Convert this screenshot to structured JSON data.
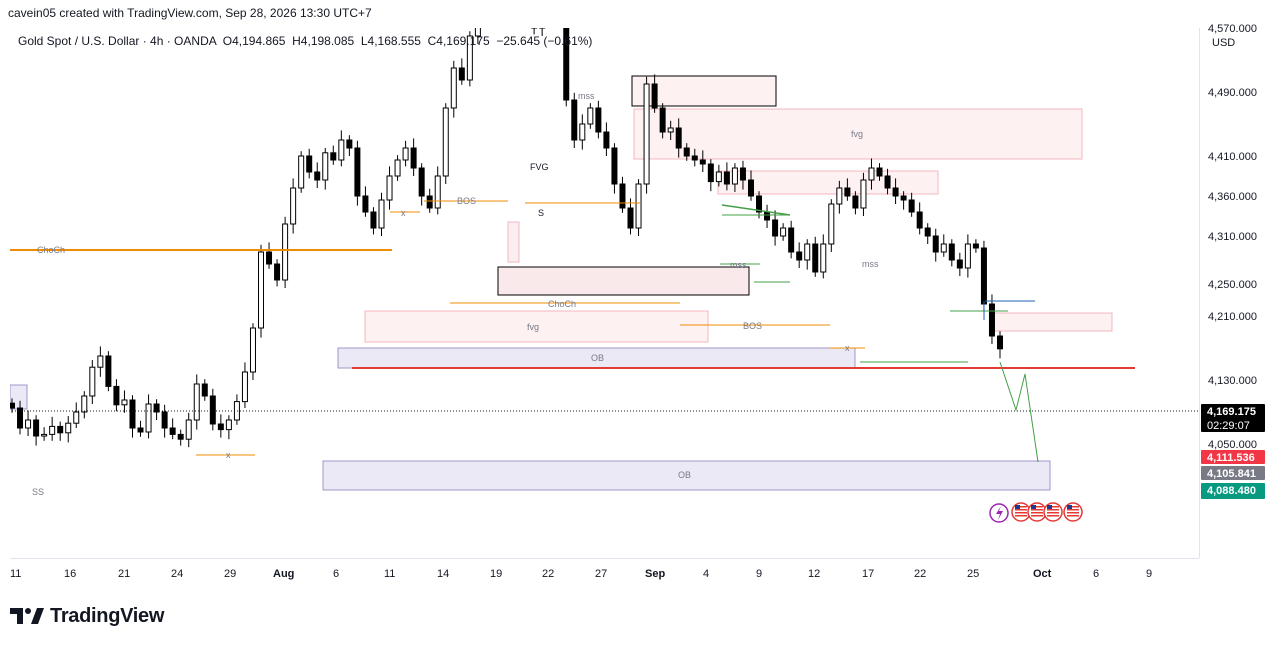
{
  "header": {
    "attribution": "cavein05 created with TradingView.com, Sep 28, 2026 13:30 UTC+7"
  },
  "symbol": {
    "name": "Gold Spot / U.S. Dollar · 4h · OANDA",
    "open": "O4,194.865",
    "high": "H4,198.085",
    "low": "L4,168.555",
    "close": "C4,169.175",
    "change": "−25.645 (−0.61%)"
  },
  "currency": "USD",
  "price_labels": {
    "current": "4,169.175",
    "countdown": "02:29:07",
    "red": "4,111.536",
    "gray": "4,105.841",
    "green": "4,088.480"
  },
  "annotations": {
    "choch_left": "ChoCh",
    "choch_mid": "ChoCh",
    "bos_top": "BOS",
    "bos_mid": "BOS",
    "fvg_top": "fvg",
    "fvg_mid": "fvg",
    "FVG": "FVG",
    "S": "S",
    "ob_mid": "OB",
    "ob_bottom": "OB",
    "mss_top": "mss",
    "mss_mid": "mss",
    "mss_right": "mss",
    "x": "x",
    "ss": "SS"
  },
  "colors": {
    "up": "#000000",
    "down": "#000000",
    "orange": "#f08c00",
    "red_line": "#e53935",
    "green": "#43a047",
    "blue": "#1e63b5",
    "ob_fill": "#ece9f7",
    "fvg_fill": "#fdf1f2",
    "label_red": "#f23645",
    "label_gray": "#787b86",
    "label_green": "#089981"
  },
  "logo": {
    "text": "TradingView"
  },
  "icons": {
    "lightning": "lightning-icon",
    "flags": "us-flag-icon"
  },
  "chart_data": {
    "type": "candlestick",
    "title": "Gold Spot / U.S. Dollar · 4h · OANDA",
    "y_ticks": [
      "4,570.000",
      "4,490.000",
      "4,410.000",
      "4,360.000",
      "4,310.000",
      "4,250.000",
      "4,210.000",
      "4,130.000",
      "4,050.000"
    ],
    "y_tick_values": [
      4570,
      4490,
      4410,
      4360,
      4310,
      4250,
      4210,
      4130,
      4050
    ],
    "x_ticks": [
      "11",
      "16",
      "21",
      "24",
      "29",
      "Aug",
      "6",
      "11",
      "14",
      "19",
      "22",
      "27",
      "Sep",
      "4",
      "9",
      "12",
      "17",
      "22",
      "25",
      "Oct",
      "6",
      "9"
    ],
    "ylim": [
      4020,
      4690
    ],
    "close_path": [
      4095,
      4070,
      4080,
      4060,
      4062,
      4072,
      4064,
      4076,
      4090,
      4110,
      4146,
      4160,
      4122,
      4099,
      4105,
      4070,
      4065,
      4100,
      4090,
      4070,
      4062,
      4056,
      4080,
      4125,
      4110,
      4075,
      4068,
      4080,
      4103,
      4140,
      4195,
      4290,
      4275,
      4255,
      4325,
      4370,
      4410,
      4390,
      4380,
      4414,
      4405,
      4430,
      4420,
      4360,
      4340,
      4320,
      4355,
      4385,
      4405,
      4420,
      4395,
      4360,
      4345,
      4385,
      4470,
      4520,
      4505,
      4560,
      4600,
      4640,
      4630,
      4655,
      4648,
      4600,
      4590,
      4570,
      4612,
      4595,
      4585,
      4480,
      4430,
      4450,
      4470,
      4440,
      4420,
      4375,
      4345,
      4320,
      4375,
      4500,
      4470,
      4440,
      4445,
      4420,
      4410,
      4405,
      4400,
      4378,
      4390,
      4375,
      4395,
      4380,
      4360,
      4340,
      4330,
      4310,
      4320,
      4290,
      4280,
      4300,
      4265,
      4300,
      4350,
      4370,
      4360,
      4345,
      4380,
      4395,
      4385,
      4370,
      4360,
      4355,
      4340,
      4320,
      4310,
      4290,
      4300,
      4280,
      4270,
      4300,
      4295,
      4225,
      4185,
      4169
    ],
    "current_price": 4169.175
  }
}
